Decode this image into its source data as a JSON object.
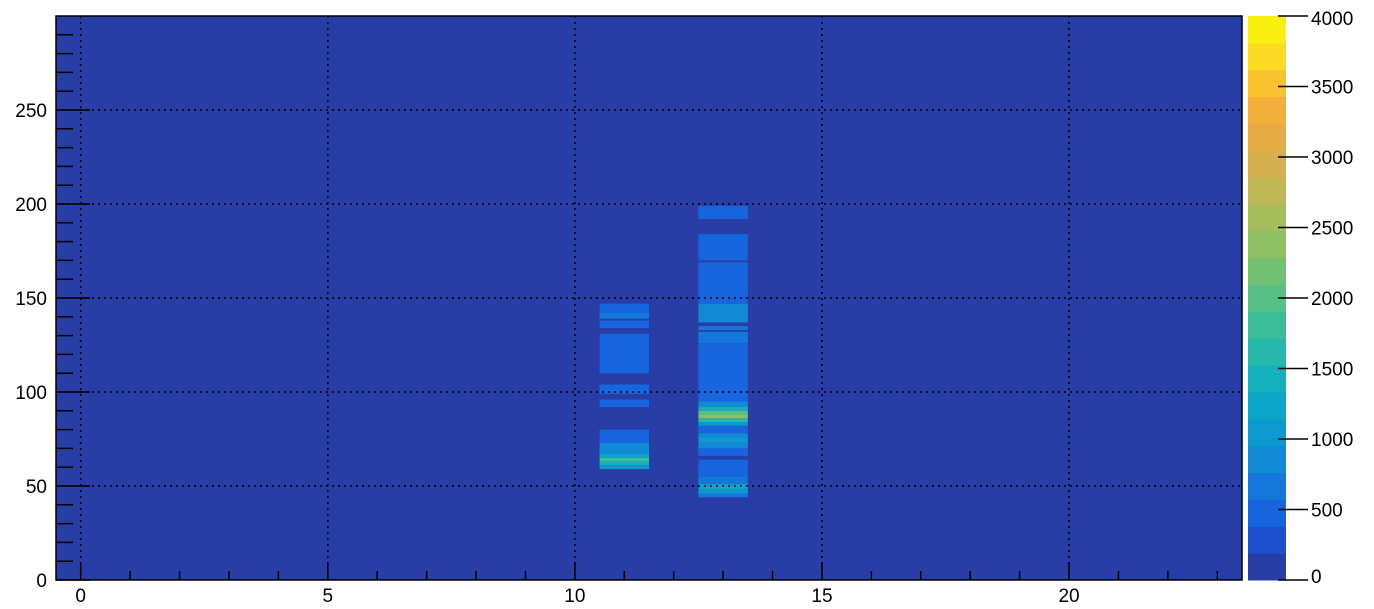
{
  "chart_data": {
    "type": "heatmap",
    "title": "",
    "xlabel": "",
    "ylabel": "",
    "xlim": [
      -0.5,
      23.5
    ],
    "ylim": [
      0,
      300
    ],
    "x_ticks": [
      0,
      5,
      10,
      15,
      20
    ],
    "x_tick_labels": [
      "0",
      "5",
      "10",
      "15",
      "20"
    ],
    "y_ticks": [
      0,
      50,
      100,
      150,
      200,
      250
    ],
    "y_tick_labels": [
      "0",
      "50",
      "100",
      "150",
      "200",
      "250"
    ],
    "grid": true,
    "background_value": 0,
    "colorbar": {
      "range": [
        0,
        4000
      ],
      "ticks": [
        0,
        500,
        1000,
        1500,
        2000,
        2500,
        3000,
        3500,
        4000
      ],
      "tick_labels": [
        "0",
        "500",
        "1000",
        "1500",
        "2000",
        "2500",
        "3000",
        "3500",
        "4000"
      ],
      "colors": [
        "#283ea6",
        "#1d4fcf",
        "#1664de",
        "#1478db",
        "#1289d4",
        "#0c99cf",
        "#0ba6c8",
        "#15b0bb",
        "#26b8ab",
        "#3cbd99",
        "#56c085",
        "#72c072",
        "#8dbf63",
        "#a7bc5b",
        "#c0b755",
        "#d5b04e",
        "#e6ab44",
        "#f4ae3a",
        "#fac12e",
        "#fbdb21",
        "#f8f00f"
      ]
    },
    "cells": [
      {
        "x": [
          10.5,
          11.5
        ],
        "y": [
          142,
          147
        ],
        "value": 450
      },
      {
        "x": [
          10.5,
          11.5
        ],
        "y": [
          139,
          142
        ],
        "value": 700
      },
      {
        "x": [
          10.5,
          11.5
        ],
        "y": [
          134,
          138
        ],
        "value": 500
      },
      {
        "x": [
          10.5,
          11.5
        ],
        "y": [
          110,
          131
        ],
        "value": 400
      },
      {
        "x": [
          10.5,
          11.5
        ],
        "y": [
          99,
          104
        ],
        "value": 400
      },
      {
        "x": [
          10.5,
          11.5
        ],
        "y": [
          92,
          96
        ],
        "value": 450
      },
      {
        "x": [
          10.5,
          11.5
        ],
        "y": [
          73,
          80
        ],
        "value": 450
      },
      {
        "x": [
          10.5,
          11.5
        ],
        "y": [
          67,
          73
        ],
        "value": 900
      },
      {
        "x": [
          10.5,
          11.5
        ],
        "y": [
          65,
          67
        ],
        "value": 1300
      },
      {
        "x": [
          10.5,
          11.5
        ],
        "y": [
          63,
          65
        ],
        "value": 1900
      },
      {
        "x": [
          10.5,
          11.5
        ],
        "y": [
          61,
          63
        ],
        "value": 1500
      },
      {
        "x": [
          10.5,
          11.5
        ],
        "y": [
          59,
          61
        ],
        "value": 1100
      },
      {
        "x": [
          12.5,
          13.5
        ],
        "y": [
          192,
          199
        ],
        "value": 400
      },
      {
        "x": [
          12.5,
          13.5
        ],
        "y": [
          170,
          184
        ],
        "value": 400
      },
      {
        "x": [
          12.5,
          13.5
        ],
        "y": [
          155,
          169
        ],
        "value": 500
      },
      {
        "x": [
          12.5,
          13.5
        ],
        "y": [
          147,
          155
        ],
        "value": 500
      },
      {
        "x": [
          12.5,
          13.5
        ],
        "y": [
          137,
          147
        ],
        "value": 800
      },
      {
        "x": [
          12.5,
          13.5
        ],
        "y": [
          133,
          135
        ],
        "value": 600
      },
      {
        "x": [
          12.5,
          13.5
        ],
        "y": [
          126,
          132
        ],
        "value": 650
      },
      {
        "x": [
          12.5,
          13.5
        ],
        "y": [
          100,
          126
        ],
        "value": 450
      },
      {
        "x": [
          12.5,
          13.5
        ],
        "y": [
          95,
          100
        ],
        "value": 500
      },
      {
        "x": [
          12.5,
          13.5
        ],
        "y": [
          92,
          95
        ],
        "value": 800
      },
      {
        "x": [
          12.5,
          13.5
        ],
        "y": [
          90,
          92
        ],
        "value": 1500
      },
      {
        "x": [
          12.5,
          13.5
        ],
        "y": [
          88,
          90
        ],
        "value": 2000
      },
      {
        "x": [
          12.5,
          13.5
        ],
        "y": [
          86,
          88
        ],
        "value": 2400
      },
      {
        "x": [
          12.5,
          13.5
        ],
        "y": [
          84,
          86
        ],
        "value": 1600
      },
      {
        "x": [
          12.5,
          13.5
        ],
        "y": [
          82,
          84
        ],
        "value": 1100
      },
      {
        "x": [
          12.5,
          13.5
        ],
        "y": [
          78,
          82
        ],
        "value": 500
      },
      {
        "x": [
          12.5,
          13.5
        ],
        "y": [
          76,
          78
        ],
        "value": 800
      },
      {
        "x": [
          12.5,
          13.5
        ],
        "y": [
          73,
          76
        ],
        "value": 1100
      },
      {
        "x": [
          12.5,
          13.5
        ],
        "y": [
          70,
          73
        ],
        "value": 800
      },
      {
        "x": [
          12.5,
          13.5
        ],
        "y": [
          66,
          70
        ],
        "value": 450
      },
      {
        "x": [
          12.5,
          13.5
        ],
        "y": [
          55,
          64
        ],
        "value": 500
      },
      {
        "x": [
          12.5,
          13.5
        ],
        "y": [
          51,
          55
        ],
        "value": 700
      },
      {
        "x": [
          12.5,
          13.5
        ],
        "y": [
          48,
          51
        ],
        "value": 1300
      },
      {
        "x": [
          12.5,
          13.5
        ],
        "y": [
          46,
          48
        ],
        "value": 1000
      },
      {
        "x": [
          12.5,
          13.5
        ],
        "y": [
          44,
          46
        ],
        "value": 700
      }
    ]
  }
}
